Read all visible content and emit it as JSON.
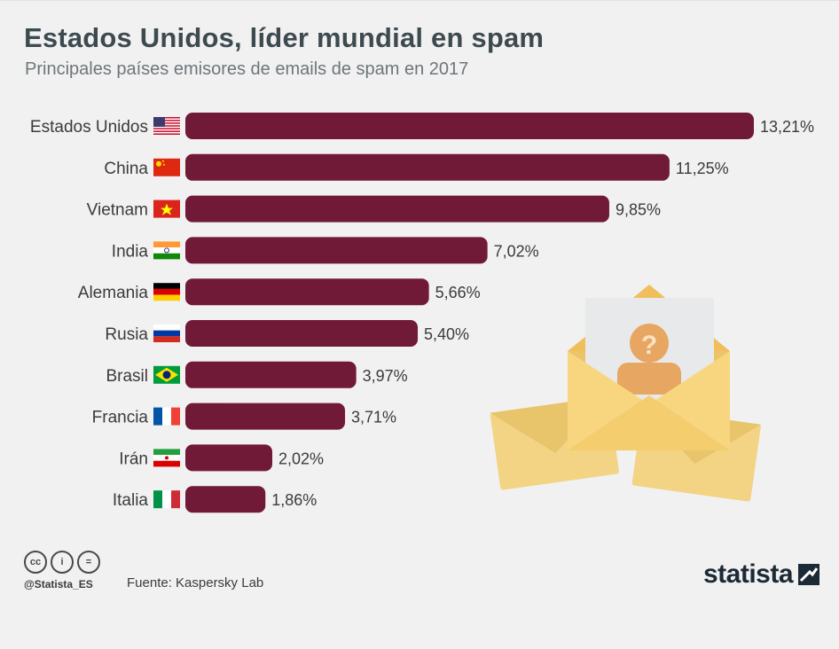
{
  "header": {
    "title": "Estados Unidos, líder mundial en spam",
    "subtitle": "Principales países emisores de emails de spam en 2017"
  },
  "chart_data": {
    "type": "bar",
    "orientation": "horizontal",
    "title": "Estados Unidos, líder mundial en spam",
    "subtitle": "Principales países emisores de emails de spam en 2017",
    "categories": [
      "Estados Unidos",
      "China",
      "Vietnam",
      "India",
      "Alemania",
      "Rusia",
      "Brasil",
      "Francia",
      "Irán",
      "Italia"
    ],
    "values": [
      13.21,
      11.25,
      9.85,
      7.02,
      5.66,
      5.4,
      3.97,
      3.71,
      2.02,
      1.86
    ],
    "value_labels": [
      "13,21%",
      "11,25%",
      "9,85%",
      "7,02%",
      "5,66%",
      "5,40%",
      "3,97%",
      "3,71%",
      "2,02%",
      "1,86%"
    ],
    "flags": [
      "us-flag-icon",
      "cn-flag-icon",
      "vn-flag-icon",
      "in-flag-icon",
      "de-flag-icon",
      "ru-flag-icon",
      "br-flag-icon",
      "fr-flag-icon",
      "ir-flag-icon",
      "it-flag-icon"
    ],
    "xlim": [
      0,
      13.21
    ],
    "bar_color": "#701a37",
    "grid": false,
    "legend": "none"
  },
  "illustration": {
    "icon": "spam-envelopes-icon"
  },
  "footer": {
    "license_icons": [
      "cc-icon",
      "by-icon",
      "nd-icon"
    ],
    "cc_glyphs": [
      "cc",
      "i",
      "="
    ],
    "handle": "@Statista_ES",
    "source": "Fuente: Kaspersky Lab",
    "brand": "statista"
  },
  "colors": {
    "background": "#f1f1f1",
    "bar": "#701a37",
    "title": "#3d4a50",
    "envelope": "#f5d77e"
  }
}
